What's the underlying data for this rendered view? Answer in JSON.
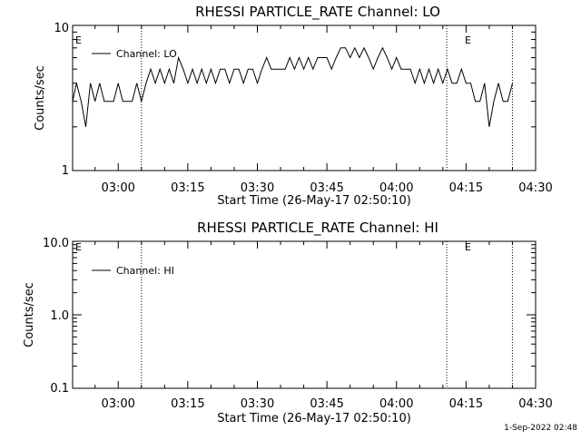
{
  "footer_timestamp": "1-Sep-2022 02:48",
  "chart_data": [
    {
      "type": "line",
      "title": "RHESSI PARTICLE_RATE Channel: LO",
      "xlabel": "Start Time (26-May-17 02:50:10)",
      "ylabel": "Counts/sec",
      "xlim": [
        "02:50:10",
        "04:30:00"
      ],
      "ylim": [
        1,
        10
      ],
      "yscale": "log",
      "ytick_labels": [
        "1",
        "10"
      ],
      "xtick_labels": [
        "03:00",
        "03:15",
        "03:30",
        "03:45",
        "04:00",
        "04:15",
        "04:30"
      ],
      "grid": false,
      "legend_position": "top-left",
      "series": [
        {
          "name": "Channel: LO",
          "x": [
            "02:50:10",
            "02:51:00",
            "02:52:00",
            "02:53:00",
            "02:54:00",
            "02:55:00",
            "02:56:00",
            "02:57:00",
            "02:58:00",
            "02:59:00",
            "03:00:00",
            "03:01:00",
            "03:02:00",
            "03:03:00",
            "03:04:00",
            "03:05:00",
            "03:06:00",
            "03:07:00",
            "03:08:00",
            "03:09:00",
            "03:10:00",
            "03:11:00",
            "03:12:00",
            "03:13:00",
            "03:14:00",
            "03:15:00",
            "03:16:00",
            "03:17:00",
            "03:18:00",
            "03:19:00",
            "03:20:00",
            "03:21:00",
            "03:22:00",
            "03:23:00",
            "03:24:00",
            "03:25:00",
            "03:26:00",
            "03:27:00",
            "03:28:00",
            "03:29:00",
            "03:30:00",
            "03:31:00",
            "03:32:00",
            "03:33:00",
            "03:34:00",
            "03:35:00",
            "03:36:00",
            "03:37:00",
            "03:38:00",
            "03:39:00",
            "03:40:00",
            "03:41:00",
            "03:42:00",
            "03:43:00",
            "03:44:00",
            "03:45:00",
            "03:46:00",
            "03:47:00",
            "03:48:00",
            "03:49:00",
            "03:50:00",
            "03:51:00",
            "03:52:00",
            "03:53:00",
            "03:54:00",
            "03:55:00",
            "03:56:00",
            "03:57:00",
            "03:58:00",
            "03:59:00",
            "04:00:00",
            "04:01:00",
            "04:02:00",
            "04:03:00",
            "04:04:00",
            "04:05:00",
            "04:06:00",
            "04:07:00",
            "04:08:00",
            "04:09:00",
            "04:10:00",
            "04:11:00",
            "04:12:00",
            "04:13:00",
            "04:14:00",
            "04:15:00",
            "04:16:00",
            "04:17:00",
            "04:18:00",
            "04:19:00",
            "04:20:00",
            "04:21:00",
            "04:22:00",
            "04:23:00",
            "04:24:00",
            "04:25:00"
          ],
          "y": [
            3,
            4,
            3,
            2,
            4,
            3,
            4,
            3,
            3,
            3,
            4,
            3,
            3,
            3,
            4,
            3,
            4,
            5,
            4,
            5,
            4,
            5,
            4,
            6,
            5,
            4,
            5,
            4,
            5,
            4,
            5,
            4,
            5,
            5,
            4,
            5,
            5,
            4,
            5,
            5,
            4,
            5,
            6,
            5,
            5,
            5,
            5,
            6,
            5,
            6,
            5,
            6,
            5,
            6,
            6,
            6,
            5,
            6,
            7,
            7,
            6,
            7,
            6,
            7,
            6,
            5,
            6,
            7,
            6,
            5,
            6,
            5,
            5,
            5,
            4,
            5,
            4,
            5,
            4,
            5,
            4,
            5,
            4,
            4,
            5,
            4,
            4,
            3,
            3,
            4,
            2,
            3,
            4,
            3,
            3,
            4
          ]
        }
      ],
      "vertical_markers": [
        "03:05:00",
        "04:10:50",
        "04:25:00"
      ],
      "annotations": [
        "E",
        "E"
      ]
    },
    {
      "type": "line",
      "title": "RHESSI PARTICLE_RATE Channel: HI",
      "xlabel": "Start Time (26-May-17 02:50:10)",
      "ylabel": "Counts/sec",
      "xlim": [
        "02:50:10",
        "04:30:00"
      ],
      "ylim": [
        0.1,
        10.0
      ],
      "yscale": "log",
      "ytick_labels": [
        "0.1",
        "1.0",
        "10.0"
      ],
      "xtick_labels": [
        "03:00",
        "03:15",
        "03:30",
        "03:45",
        "04:00",
        "04:15",
        "04:30"
      ],
      "grid": false,
      "legend_position": "top-left",
      "series": [
        {
          "name": "Channel: HI",
          "x": [],
          "y": []
        }
      ],
      "vertical_markers": [
        "03:05:00",
        "04:10:50",
        "04:25:00"
      ],
      "annotations": [
        "E",
        "E"
      ]
    }
  ]
}
